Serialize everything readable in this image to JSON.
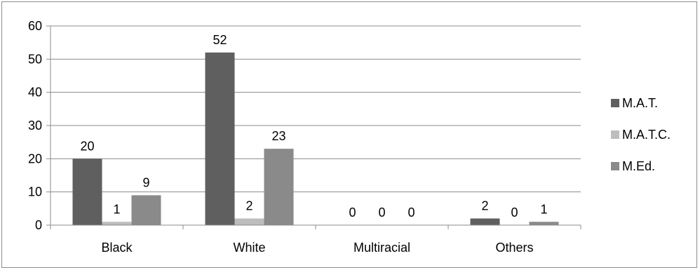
{
  "chart_data": {
    "type": "bar",
    "categories": [
      "Black",
      "White",
      "Multiracial",
      "Others"
    ],
    "series": [
      {
        "name": "M.A.T.",
        "values": [
          20,
          52,
          0,
          2
        ],
        "color": "#5f5f5f"
      },
      {
        "name": "M.A.T.C.",
        "values": [
          1,
          2,
          0,
          0
        ],
        "color": "#bdbdbd"
      },
      {
        "name": "M.Ed.",
        "values": [
          9,
          23,
          0,
          1
        ],
        "color": "#8a8a8a"
      }
    ],
    "ylim": [
      0,
      60
    ],
    "yticks": [
      0,
      10,
      20,
      30,
      40,
      50,
      60
    ],
    "grid": true,
    "legend_position": "right",
    "data_labels": true
  }
}
